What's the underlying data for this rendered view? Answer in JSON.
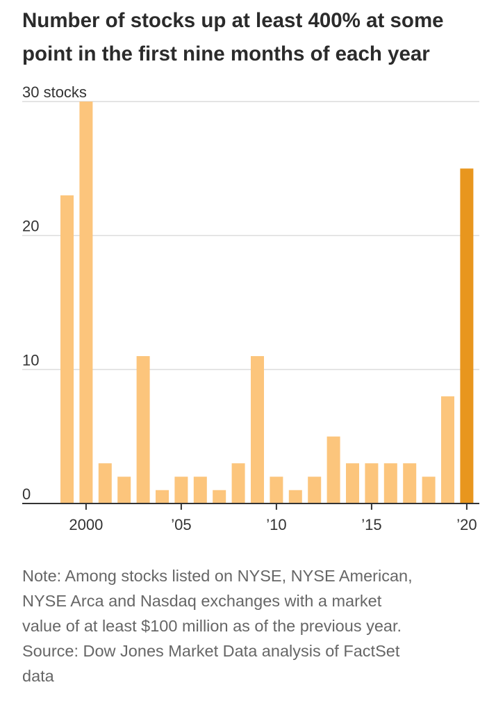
{
  "title_lines": [
    "Number of stocks up at least 400% at some",
    "point in the first nine months of each year"
  ],
  "chart_data": {
    "type": "bar",
    "categories": [
      "1999",
      "2000",
      "2001",
      "2002",
      "2003",
      "2004",
      "2005",
      "2006",
      "2007",
      "2008",
      "2009",
      "2010",
      "2011",
      "2012",
      "2013",
      "2014",
      "2015",
      "2016",
      "2017",
      "2018",
      "2019",
      "2020"
    ],
    "values": [
      23,
      30,
      3,
      2,
      11,
      1,
      2,
      2,
      1,
      3,
      11,
      2,
      1,
      2,
      5,
      3,
      3,
      3,
      3,
      2,
      8,
      25
    ],
    "title": "Number of stocks up at least 400% at some point in the first nine months of each year",
    "ylim": [
      0,
      30
    ],
    "y_ticks": [
      {
        "value": 0,
        "label": "0"
      },
      {
        "value": 10,
        "label": "10"
      },
      {
        "value": 20,
        "label": "20"
      },
      {
        "value": 30,
        "label": "30 stocks"
      }
    ],
    "x_ticks": [
      {
        "category": "2000",
        "label": "2000"
      },
      {
        "category": "2005",
        "label": "’05"
      },
      {
        "category": "2010",
        "label": "’10"
      },
      {
        "category": "2015",
        "label": "’15"
      },
      {
        "category": "2020",
        "label": "’20"
      }
    ],
    "highlight_category": "2020",
    "grid": true,
    "colors": {
      "bar": "#fcc57c",
      "highlight": "#e8961e",
      "grid": "#dcdcdc",
      "axis": "#333333",
      "tick_text": "#333333"
    }
  },
  "note_lines": [
    "Note: Among stocks listed on NYSE, NYSE American,",
    "NYSE Arca and Nasdaq exchanges with a market",
    "value of at least $100 million as of the previous year.",
    "Source: Dow Jones Market Data analysis of FactSet",
    "data"
  ]
}
